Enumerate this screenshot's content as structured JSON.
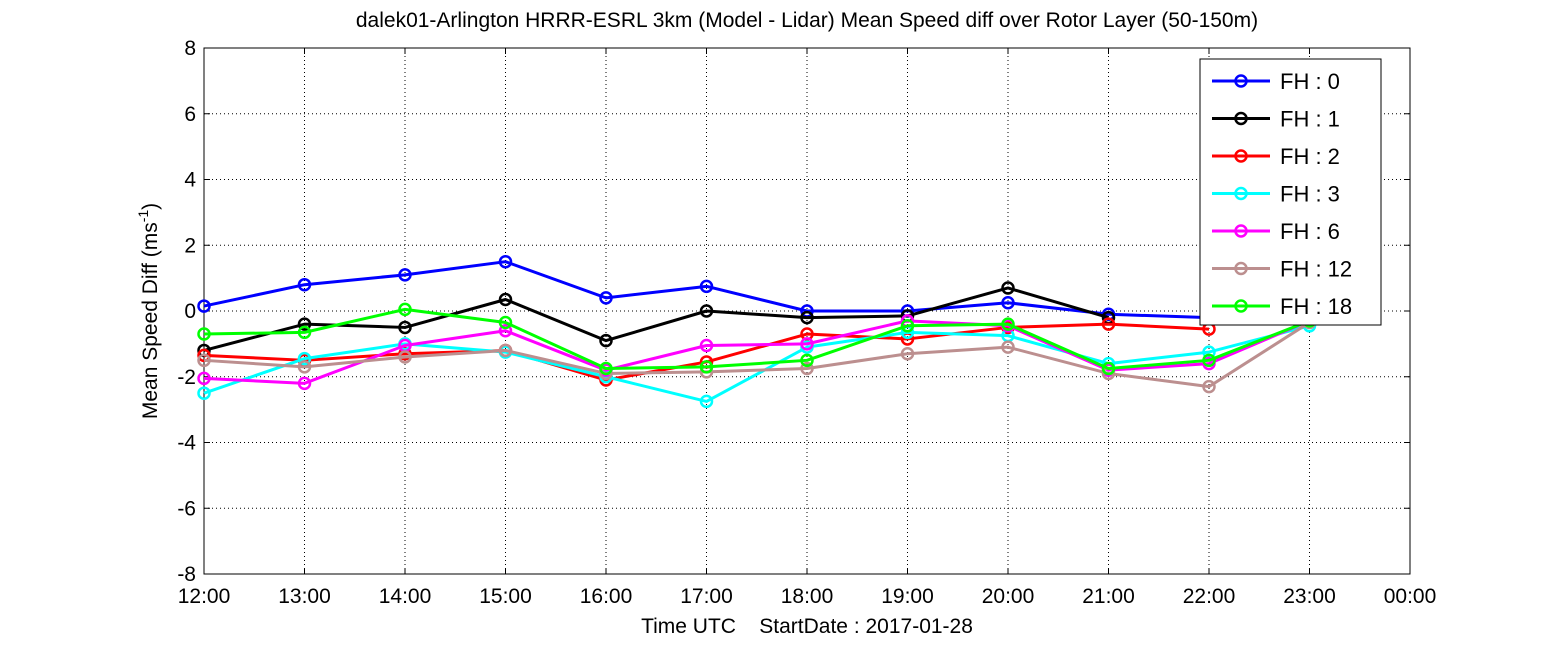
{
  "chart_data": {
    "type": "line",
    "title": "dalek01-Arlington HRRR-ESRL 3km (Model - Lidar) Mean Speed diff over Rotor Layer (50-150m)",
    "xlabel": "Time UTC    StartDate : 2017-01-28",
    "ylabel_main": "Mean Speed Diff (ms",
    "ylabel_sup": "-1",
    "ylabel_end": ")",
    "categories": [
      "12:00",
      "13:00",
      "14:00",
      "15:00",
      "16:00",
      "17:00",
      "18:00",
      "19:00",
      "20:00",
      "21:00",
      "22:00",
      "23:00",
      "00:00"
    ],
    "ylim": [
      -8,
      8
    ],
    "yticks": [
      -8,
      -6,
      -4,
      -2,
      0,
      2,
      4,
      6,
      8
    ],
    "grid": true,
    "legend_position": "top-right",
    "series": [
      {
        "name": "FH : 0",
        "color": "#0000ff",
        "values": [
          0.15,
          0.8,
          1.1,
          1.5,
          0.4,
          0.75,
          0.0,
          0.0,
          0.25,
          -0.1,
          -0.2,
          null,
          null
        ]
      },
      {
        "name": "FH : 1",
        "color": "#000000",
        "values": [
          -1.2,
          -0.4,
          -0.5,
          0.35,
          -0.9,
          0.0,
          -0.2,
          -0.15,
          0.7,
          -0.2,
          null,
          null,
          null
        ]
      },
      {
        "name": "FH : 2",
        "color": "#ff0000",
        "values": [
          -1.35,
          -1.5,
          -1.3,
          -1.2,
          -2.1,
          -1.55,
          -0.7,
          -0.85,
          -0.5,
          -0.4,
          -0.55,
          null,
          null
        ]
      },
      {
        "name": "FH : 3",
        "color": "#00ffff",
        "values": [
          -2.5,
          -1.45,
          -1.0,
          -1.25,
          -2.0,
          -2.75,
          -1.1,
          -0.65,
          -0.75,
          -1.6,
          -1.25,
          -0.45,
          null
        ]
      },
      {
        "name": "FH : 6",
        "color": "#ff00ff",
        "values": [
          -2.05,
          -2.2,
          -1.05,
          -0.6,
          -1.8,
          -1.05,
          -1.0,
          -0.3,
          -0.45,
          -1.8,
          -1.6,
          -0.3,
          null
        ]
      },
      {
        "name": "FH : 12",
        "color": "#bc8f8f",
        "values": [
          -1.5,
          -1.7,
          -1.4,
          -1.2,
          -1.9,
          -1.85,
          -1.75,
          -1.3,
          -1.1,
          -1.9,
          -2.3,
          -0.35,
          null
        ]
      },
      {
        "name": "FH : 18",
        "color": "#00ff00",
        "values": [
          -0.7,
          -0.65,
          0.05,
          -0.35,
          -1.75,
          -1.7,
          -1.5,
          -0.45,
          -0.4,
          -1.75,
          -1.5,
          -0.3,
          null
        ]
      }
    ]
  }
}
